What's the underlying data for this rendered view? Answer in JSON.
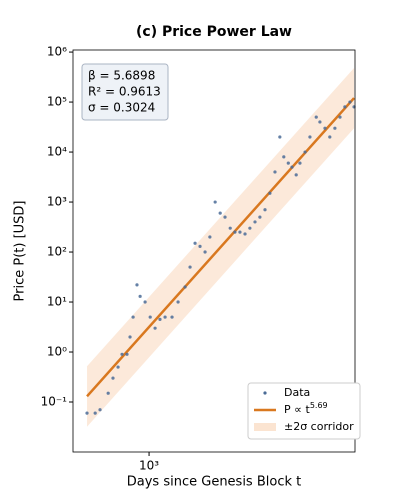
{
  "chart_data": {
    "type": "scatter",
    "title": "(c) Price Power Law",
    "xlabel": "Days since Genesis Block t",
    "ylabel": "Price P(t) [USD]",
    "xscale": "log",
    "yscale": "log",
    "xlim": [
      515,
      6030
    ],
    "ylim": [
      0.01,
      1100000
    ],
    "xticks": [
      {
        "value": 1000,
        "label": "10³"
      }
    ],
    "yticks": [
      {
        "value": 0.1,
        "label": "10⁻¹"
      },
      {
        "value": 1,
        "label": "10⁰"
      },
      {
        "value": 10,
        "label": "10¹"
      },
      {
        "value": 100,
        "label": "10²"
      },
      {
        "value": 1000,
        "label": "10³"
      },
      {
        "value": 10000,
        "label": "10⁴"
      },
      {
        "value": 100000,
        "label": "10⁵"
      },
      {
        "value": 1000000,
        "label": "10⁶"
      }
    ],
    "annotations": [
      "β = 5.6898",
      "R² = 0.9613",
      "σ = 0.3024"
    ],
    "legend": "lower right",
    "series": [
      {
        "name": "Data",
        "type": "scatter",
        "color": "#4a6b96",
        "x": [
          582,
          625,
          652,
          700,
          730,
          763,
          790,
          825,
          847,
          870,
          900,
          925,
          966,
          1010,
          1054,
          1100,
          1150,
          1222,
          1288,
          1369,
          1430,
          1494,
          1560,
          1630,
          1700,
          1780,
          1860,
          1940,
          2030,
          2115,
          2210,
          2310,
          2410,
          2520,
          2630,
          2750,
          2870,
          3000,
          3130,
          3240,
          3370,
          3480,
          3610,
          3730,
          3900,
          4070,
          4300,
          4440,
          4640,
          4840,
          5060,
          5290,
          5520,
          5770,
          5980
        ],
        "values": [
          0.06,
          0.06,
          0.07,
          0.15,
          0.3,
          0.5,
          0.9,
          0.9,
          2,
          5,
          22,
          13,
          10,
          5,
          3,
          4.5,
          5,
          5,
          10,
          20,
          50,
          150,
          130,
          100,
          200,
          1000,
          600,
          500,
          300,
          250,
          250,
          230,
          300,
          400,
          500,
          700,
          1500,
          4000,
          20000,
          8000,
          6000,
          5000,
          3500,
          6000,
          10000,
          20000,
          50000,
          40000,
          30000,
          20000,
          30000,
          50000,
          80000,
          100000,
          80000
        ]
      },
      {
        "name": "P ∝ t^5.69",
        "type": "line",
        "color": "#d9781f",
        "x": [
          582,
          5980
        ],
        "values": [
          0.13,
          120000
        ]
      },
      {
        "name": "±2σ corridor",
        "type": "band",
        "color": "#fbe4d1",
        "x": [
          582,
          5980
        ],
        "lower": [
          0.032,
          30000
        ],
        "upper": [
          0.52,
          480000
        ]
      }
    ]
  }
}
